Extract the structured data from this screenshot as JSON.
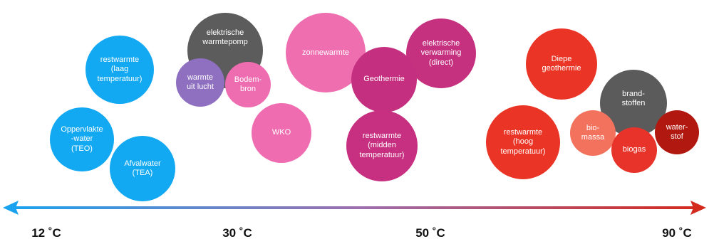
{
  "bubbles": [
    {
      "id": "restwarmte-laag",
      "label": "restwarmte\n(laag\ntemperatuur)",
      "color": "#12a9f2"
    },
    {
      "id": "oppervlaktewater",
      "label": "Oppervlakte\n-water\n(TEO)",
      "color": "#12a9f2"
    },
    {
      "id": "afvalwater",
      "label": "Afvalwater\n(TEA)",
      "color": "#12a9f2"
    },
    {
      "id": "elektrische-warmtepomp",
      "label": "elektrische\nwarmtepomp",
      "color": "#5c5c5c"
    },
    {
      "id": "warmte-uit-lucht",
      "label": "warmte\nuit lucht",
      "color": "#8e6fc0"
    },
    {
      "id": "bodembron",
      "label": "Bodem-\nbron",
      "color": "#ee6cb0"
    },
    {
      "id": "wko",
      "label": "WKO",
      "color": "#ef6cb1"
    },
    {
      "id": "zonnewarmte",
      "label": "zonnewarmte",
      "color": "#ee6eb0"
    },
    {
      "id": "elektrische-verwarming",
      "label": "elektrische\nverwarming\n(direct)",
      "color": "#c5307f"
    },
    {
      "id": "geothermie",
      "label": "Geothermie",
      "color": "#c52f80"
    },
    {
      "id": "restwarmte-midden",
      "label": "restwarmte\n(midden\ntemperatuur)",
      "color": "#c72f80"
    },
    {
      "id": "diepe-geothermie",
      "label": "Diepe\ngeothermie",
      "color": "#ea3425"
    },
    {
      "id": "restwarmte-hoog",
      "label": "restwarmte\n(hoog\ntemperatuur)",
      "color": "#ea3425"
    },
    {
      "id": "brandstoffen",
      "label": "brand-\nstoffen",
      "color": "#5b5b5b"
    },
    {
      "id": "biomassa",
      "label": "bio-\nmassa",
      "color": "#f2725d"
    },
    {
      "id": "biogas",
      "label": "biogas",
      "color": "#e8332b"
    },
    {
      "id": "waterstof",
      "label": "water-\nstof",
      "color": "#b1180f"
    }
  ],
  "axis": {
    "ticks": [
      "12 ˚C",
      "30 ˚C",
      "50 ˚C",
      "90 ˚C"
    ],
    "gradient": {
      "start": "#1aa2ee",
      "mid": "#9b6fb0",
      "end": "#d42a1e"
    }
  }
}
